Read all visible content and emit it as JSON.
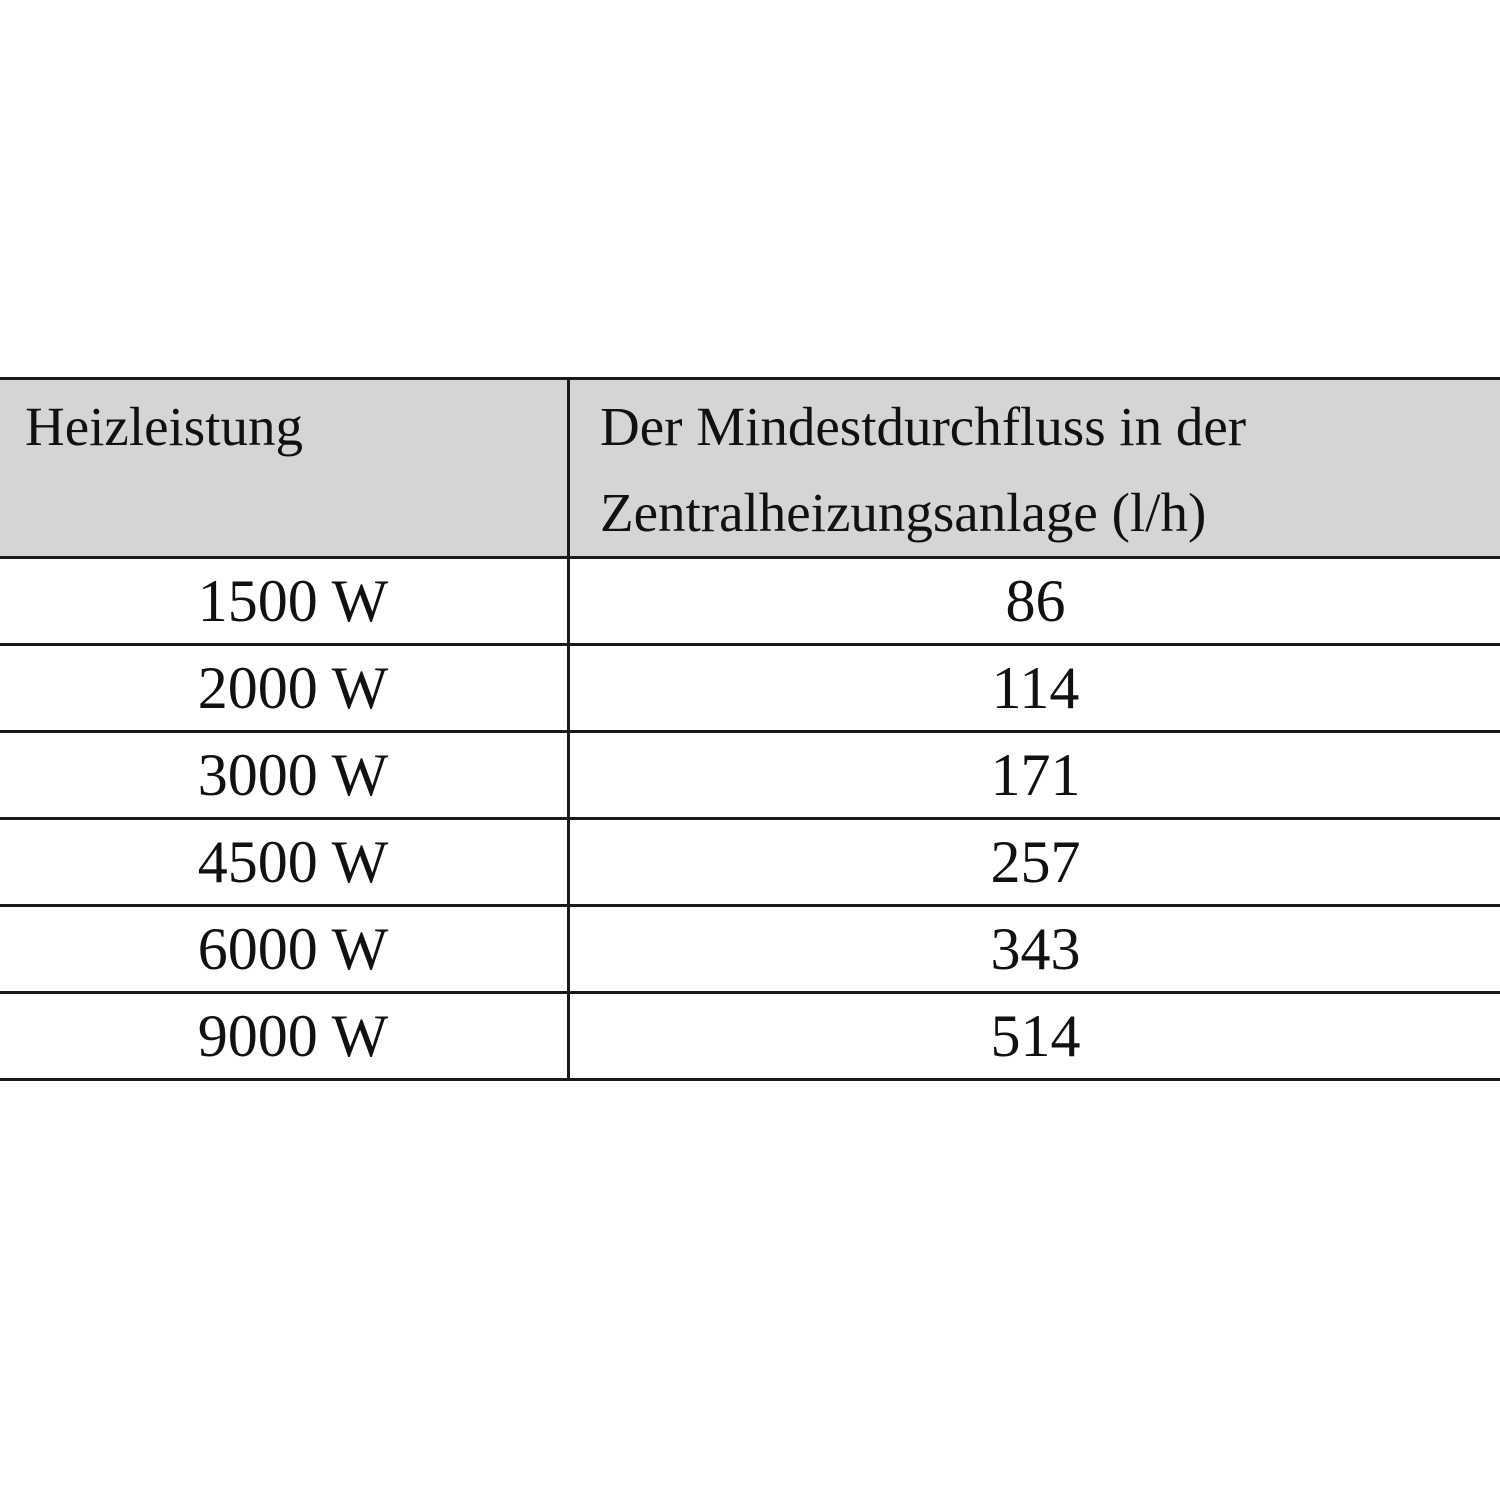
{
  "table": {
    "headers": [
      "Heizleistung",
      "Der Mindestdurchfluss in der Zentralheizungsanlage (l/h)"
    ],
    "rows": [
      [
        "1500 W",
        "86"
      ],
      [
        "2000 W",
        "114"
      ],
      [
        "3000 W",
        "171"
      ],
      [
        "4500 W",
        "257"
      ],
      [
        "6000 W",
        "343"
      ],
      [
        "9000 W",
        "514"
      ]
    ]
  },
  "colors": {
    "header_background": "#d5d5d5",
    "border": "#1a1a1a"
  }
}
